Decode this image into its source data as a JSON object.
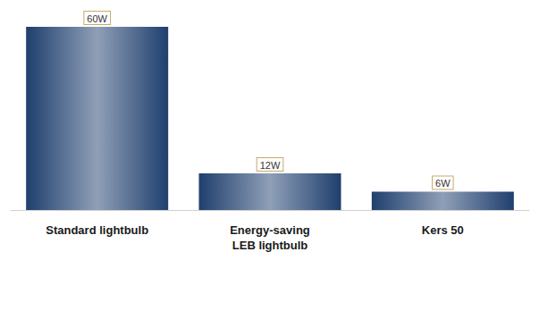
{
  "chart_data": {
    "type": "bar",
    "categories": [
      "Standard lightbulb",
      "Energy-saving LEB lightbulb",
      "Kers 50"
    ],
    "values": [
      60,
      12,
      6
    ],
    "value_labels": [
      "60W",
      "12W",
      "6W"
    ],
    "color": "#1f3f6e",
    "ylim": [
      0,
      60
    ],
    "grid": false,
    "data_labels": true,
    "tick_labels": "x"
  }
}
